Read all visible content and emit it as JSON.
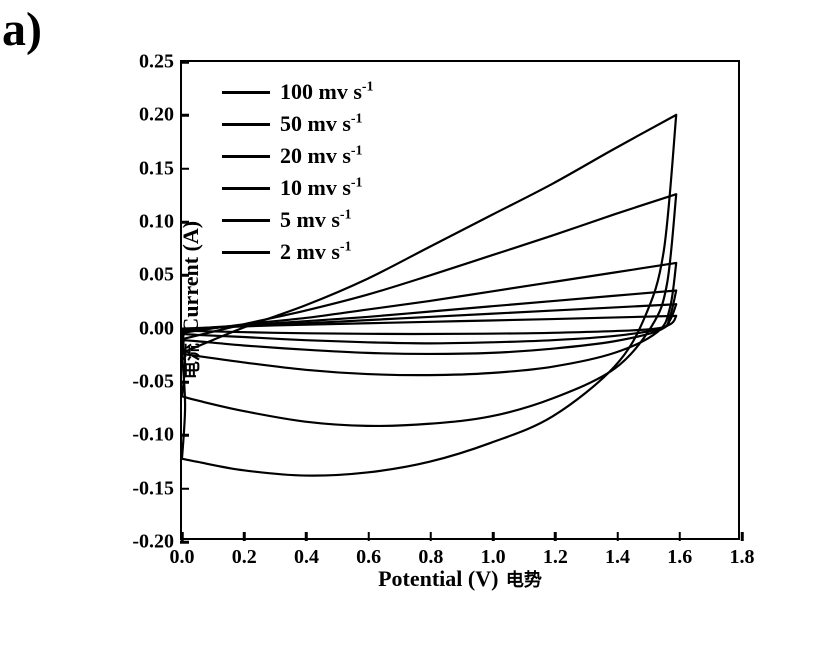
{
  "panel_label": "a)",
  "chart": {
    "type": "cyclic-voltammogram",
    "background_color": "#ffffff",
    "axis_color": "#000000",
    "line_color": "#000000",
    "line_width": 2.2,
    "border_width": 2.5,
    "font_family": "Times New Roman",
    "tick_fontsize": 20,
    "tick_fontweight": 900,
    "label_fontsize": 22,
    "label_fontweight": 900,
    "legend_fontsize": 22,
    "x": {
      "label_en": "Potential (V)",
      "label_cn": "电势",
      "min": 0.0,
      "max": 1.8,
      "tick_step": 0.2,
      "ticks": [
        0.0,
        0.2,
        0.4,
        0.6,
        0.8,
        1.0,
        1.2,
        1.4,
        1.6,
        1.8
      ]
    },
    "y": {
      "label_en": "Current (A)",
      "label_cn": "电流",
      "min": -0.2,
      "max": 0.25,
      "tick_step": 0.05,
      "ticks": [
        -0.2,
        -0.15,
        -0.1,
        -0.05,
        0.0,
        0.05,
        0.1,
        0.15,
        0.2,
        0.25
      ]
    },
    "legend_items": [
      {
        "value": 100,
        "unit": "mv s",
        "sup": "-1",
        "label": "100 mv s⁻¹"
      },
      {
        "value": 50,
        "unit": "mv s",
        "sup": "-1",
        "label": "50 mv s⁻¹"
      },
      {
        "value": 20,
        "unit": "mv s",
        "sup": "-1",
        "label": "20 mv s⁻¹"
      },
      {
        "value": 10,
        "unit": "mv s",
        "sup": "-1",
        "label": "10 mv s⁻¹"
      },
      {
        "value": 5,
        "unit": "mv s",
        "sup": "-1",
        "label": "5 mv s⁻¹"
      },
      {
        "value": 2,
        "unit": "mv s",
        "sup": "-1",
        "label": "2 mv s⁻¹"
      }
    ],
    "series": [
      {
        "name": "100",
        "forward": [
          [
            0.0,
            -0.025
          ],
          [
            0.2,
            -0.001
          ],
          [
            0.4,
            0.02
          ],
          [
            0.6,
            0.045
          ],
          [
            0.8,
            0.075
          ],
          [
            1.0,
            0.105
          ],
          [
            1.2,
            0.135
          ],
          [
            1.4,
            0.168
          ],
          [
            1.6,
            0.2
          ]
        ],
        "reverse": [
          [
            1.6,
            0.2
          ],
          [
            1.56,
            0.072
          ],
          [
            1.5,
            0.01
          ],
          [
            1.4,
            -0.038
          ],
          [
            1.2,
            -0.085
          ],
          [
            1.0,
            -0.11
          ],
          [
            0.8,
            -0.128
          ],
          [
            0.6,
            -0.138
          ],
          [
            0.4,
            -0.141
          ],
          [
            0.2,
            -0.136
          ],
          [
            0.05,
            -0.128
          ],
          [
            0.0,
            -0.125
          ]
        ],
        "return": [
          [
            0.0,
            -0.125
          ],
          [
            0.01,
            -0.075
          ],
          [
            0.0,
            -0.025
          ]
        ]
      },
      {
        "name": "50",
        "forward": [
          [
            0.0,
            -0.012
          ],
          [
            0.2,
            0.002
          ],
          [
            0.4,
            0.015
          ],
          [
            0.6,
            0.03
          ],
          [
            0.8,
            0.048
          ],
          [
            1.0,
            0.067
          ],
          [
            1.2,
            0.086
          ],
          [
            1.4,
            0.106
          ],
          [
            1.6,
            0.125
          ]
        ],
        "reverse": [
          [
            1.6,
            0.125
          ],
          [
            1.57,
            0.04
          ],
          [
            1.52,
            0.0
          ],
          [
            1.4,
            -0.04
          ],
          [
            1.2,
            -0.068
          ],
          [
            1.0,
            -0.085
          ],
          [
            0.8,
            -0.092
          ],
          [
            0.6,
            -0.094
          ],
          [
            0.4,
            -0.09
          ],
          [
            0.2,
            -0.08
          ],
          [
            0.05,
            -0.07
          ],
          [
            0.0,
            -0.066
          ]
        ],
        "return": [
          [
            0.0,
            -0.066
          ],
          [
            0.01,
            -0.035
          ],
          [
            0.0,
            -0.012
          ]
        ]
      },
      {
        "name": "20",
        "forward": [
          [
            0.0,
            -0.006
          ],
          [
            0.2,
            0.002
          ],
          [
            0.4,
            0.008
          ],
          [
            0.6,
            0.016
          ],
          [
            0.8,
            0.024
          ],
          [
            1.0,
            0.033
          ],
          [
            1.2,
            0.042
          ],
          [
            1.4,
            0.051
          ],
          [
            1.6,
            0.06
          ]
        ],
        "reverse": [
          [
            1.6,
            0.06
          ],
          [
            1.58,
            0.018
          ],
          [
            1.54,
            -0.005
          ],
          [
            1.4,
            -0.025
          ],
          [
            1.2,
            -0.038
          ],
          [
            1.0,
            -0.044
          ],
          [
            0.8,
            -0.046
          ],
          [
            0.6,
            -0.045
          ],
          [
            0.4,
            -0.041
          ],
          [
            0.2,
            -0.034
          ],
          [
            0.05,
            -0.028
          ],
          [
            0.0,
            -0.026
          ]
        ],
        "return": [
          [
            0.0,
            -0.026
          ],
          [
            0.005,
            -0.014
          ],
          [
            0.0,
            -0.006
          ]
        ]
      },
      {
        "name": "10",
        "forward": [
          [
            0.0,
            -0.004
          ],
          [
            0.2,
            0.001
          ],
          [
            0.4,
            0.005
          ],
          [
            0.6,
            0.009
          ],
          [
            0.8,
            0.014
          ],
          [
            1.0,
            0.019
          ],
          [
            1.2,
            0.024
          ],
          [
            1.4,
            0.029
          ],
          [
            1.6,
            0.034
          ]
        ],
        "reverse": [
          [
            1.6,
            0.034
          ],
          [
            1.58,
            0.01
          ],
          [
            1.55,
            -0.003
          ],
          [
            1.4,
            -0.014
          ],
          [
            1.2,
            -0.021
          ],
          [
            1.0,
            -0.025
          ],
          [
            0.8,
            -0.026
          ],
          [
            0.6,
            -0.025
          ],
          [
            0.4,
            -0.022
          ],
          [
            0.2,
            -0.018
          ],
          [
            0.05,
            -0.014
          ],
          [
            0.0,
            -0.013
          ]
        ],
        "return": [
          [
            0.0,
            -0.013
          ],
          [
            0.005,
            -0.008
          ],
          [
            0.0,
            -0.004
          ]
        ]
      },
      {
        "name": "5",
        "forward": [
          [
            0.0,
            -0.003
          ],
          [
            0.2,
            0.001
          ],
          [
            0.4,
            0.003
          ],
          [
            0.6,
            0.006
          ],
          [
            0.8,
            0.009
          ],
          [
            1.0,
            0.012
          ],
          [
            1.2,
            0.015
          ],
          [
            1.4,
            0.018
          ],
          [
            1.6,
            0.021
          ]
        ],
        "reverse": [
          [
            1.6,
            0.021
          ],
          [
            1.58,
            0.006
          ],
          [
            1.55,
            -0.002
          ],
          [
            1.4,
            -0.009
          ],
          [
            1.2,
            -0.013
          ],
          [
            1.0,
            -0.015
          ],
          [
            0.8,
            -0.016
          ],
          [
            0.6,
            -0.015
          ],
          [
            0.4,
            -0.013
          ],
          [
            0.2,
            -0.01
          ],
          [
            0.05,
            -0.008
          ],
          [
            0.0,
            -0.007
          ]
        ],
        "return": [
          [
            0.0,
            -0.007
          ],
          [
            0.005,
            -0.005
          ],
          [
            0.0,
            -0.003
          ]
        ]
      },
      {
        "name": "2",
        "forward": [
          [
            0.0,
            -0.002
          ],
          [
            0.3,
            0.001
          ],
          [
            0.6,
            0.003
          ],
          [
            0.9,
            0.005
          ],
          [
            1.2,
            0.007
          ],
          [
            1.6,
            0.01
          ]
        ],
        "reverse": [
          [
            1.6,
            0.01
          ],
          [
            1.58,
            0.002
          ],
          [
            1.5,
            -0.003
          ],
          [
            1.2,
            -0.006
          ],
          [
            0.9,
            -0.007
          ],
          [
            0.6,
            -0.007
          ],
          [
            0.3,
            -0.006
          ],
          [
            0.0,
            -0.004
          ]
        ],
        "return": [
          [
            0.0,
            -0.004
          ],
          [
            0.005,
            -0.003
          ],
          [
            0.0,
            -0.002
          ]
        ]
      }
    ]
  }
}
